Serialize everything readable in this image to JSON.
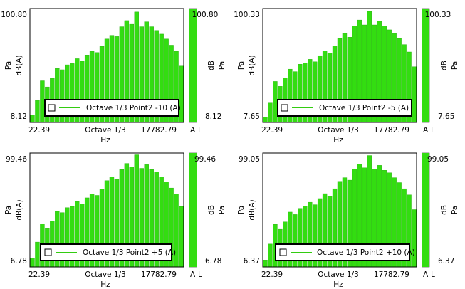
{
  "colors": {
    "bar_fill": "#33dd11",
    "bar_stroke": "#22aa0a",
    "frame": "#000000",
    "legend_line": "#33cc11"
  },
  "chart_data": [
    {
      "type": "bar",
      "ylabel_outer": "Pa",
      "ylabel_inner": "dB(A)",
      "right_label_inner": "dB",
      "right_label_outer": "Pa",
      "xlabel": "Hz",
      "x_start_label": "22.39",
      "x_center_label": "Octave 1/3",
      "x_end_label": "17782.79",
      "y_top_label": "100.80",
      "y_bottom_label": "8.12",
      "ylim": [
        8.12,
        100.8
      ],
      "legend_label": "Octave 1/3 Point2 -10 (A)",
      "legend_placement": "bottom",
      "meter_value": 100.8,
      "meter_top_label": "100.80",
      "meter_bottom_label": "8.12",
      "meter_channel_labels": [
        "A",
        "L"
      ],
      "values": [
        14,
        26,
        42,
        37,
        44,
        52,
        51,
        55,
        56,
        60,
        58,
        63,
        66,
        65,
        70,
        76,
        79,
        78,
        86,
        91,
        88,
        98,
        86,
        90,
        86,
        83,
        80,
        76,
        71,
        66,
        54
      ]
    },
    {
      "type": "bar",
      "ylabel_outer": "Pa",
      "ylabel_inner": "dB(A)",
      "right_label_inner": "dB",
      "right_label_outer": "Pa",
      "xlabel": "Hz",
      "x_start_label": "22.39",
      "x_center_label": "Octave 1/3",
      "x_end_label": "17782.79",
      "y_top_label": "100.33",
      "y_bottom_label": "7.65",
      "ylim": [
        7.65,
        100.33
      ],
      "legend_label": "Octave 1/3 Point2 -5 (A)",
      "legend_placement": "bottom",
      "meter_value": 100.33,
      "meter_top_label": "100.33",
      "meter_bottom_label": "7.65",
      "meter_channel_labels": [
        "A",
        "L"
      ],
      "values": [
        12,
        24,
        41,
        37,
        44,
        51,
        49,
        55,
        56,
        59,
        57,
        62,
        66,
        64,
        70,
        76,
        80,
        77,
        86,
        91,
        87,
        98,
        87,
        90,
        86,
        83,
        80,
        76,
        71,
        65,
        53
      ]
    },
    {
      "type": "bar",
      "ylabel_outer": "Pa",
      "ylabel_inner": "dB(A)",
      "right_label_inner": "dB",
      "right_label_outer": "Pa",
      "xlabel": "Hz",
      "x_start_label": "22.39",
      "x_center_label": "Octave 1/3",
      "x_end_label": "17782.79",
      "y_top_label": "99.46",
      "y_bottom_label": "6.78",
      "ylim": [
        6.78,
        99.46
      ],
      "legend_label": "Octave 1/3 Point2 +5 (A)",
      "legend_placement": "bottom",
      "meter_value": 99.46,
      "meter_top_label": "99.46",
      "meter_bottom_label": "6.78",
      "meter_channel_labels": [
        "A",
        "L"
      ],
      "values": [
        14,
        27,
        42,
        38,
        44,
        52,
        51,
        55,
        56,
        60,
        58,
        63,
        66,
        65,
        70,
        77,
        80,
        78,
        86,
        91,
        88,
        98,
        87,
        90,
        86,
        84,
        80,
        76,
        71,
        66,
        56
      ]
    },
    {
      "type": "bar",
      "ylabel_outer": "Pa",
      "ylabel_inner": "dB(A)",
      "right_label_inner": "dB",
      "right_label_outer": "Pa",
      "xlabel": "Hz",
      "x_start_label": "22.39",
      "x_center_label": "Octave 1/3",
      "x_end_label": "17782.79",
      "y_top_label": "99.05",
      "y_bottom_label": "6.37",
      "ylim": [
        6.37,
        99.05
      ],
      "legend_label": "Octave 1/3 Point2 +10 (A)",
      "legend_placement": "bottom",
      "meter_value": 99.05,
      "meter_top_label": "99.05",
      "meter_bottom_label": "6.37",
      "meter_channel_labels": [
        "A",
        "L"
      ],
      "values": [
        12,
        25,
        41,
        37,
        43,
        51,
        49,
        54,
        56,
        59,
        57,
        62,
        66,
        64,
        70,
        76,
        79,
        77,
        86,
        90,
        87,
        97,
        86,
        89,
        85,
        83,
        79,
        75,
        70,
        65,
        53
      ]
    }
  ]
}
